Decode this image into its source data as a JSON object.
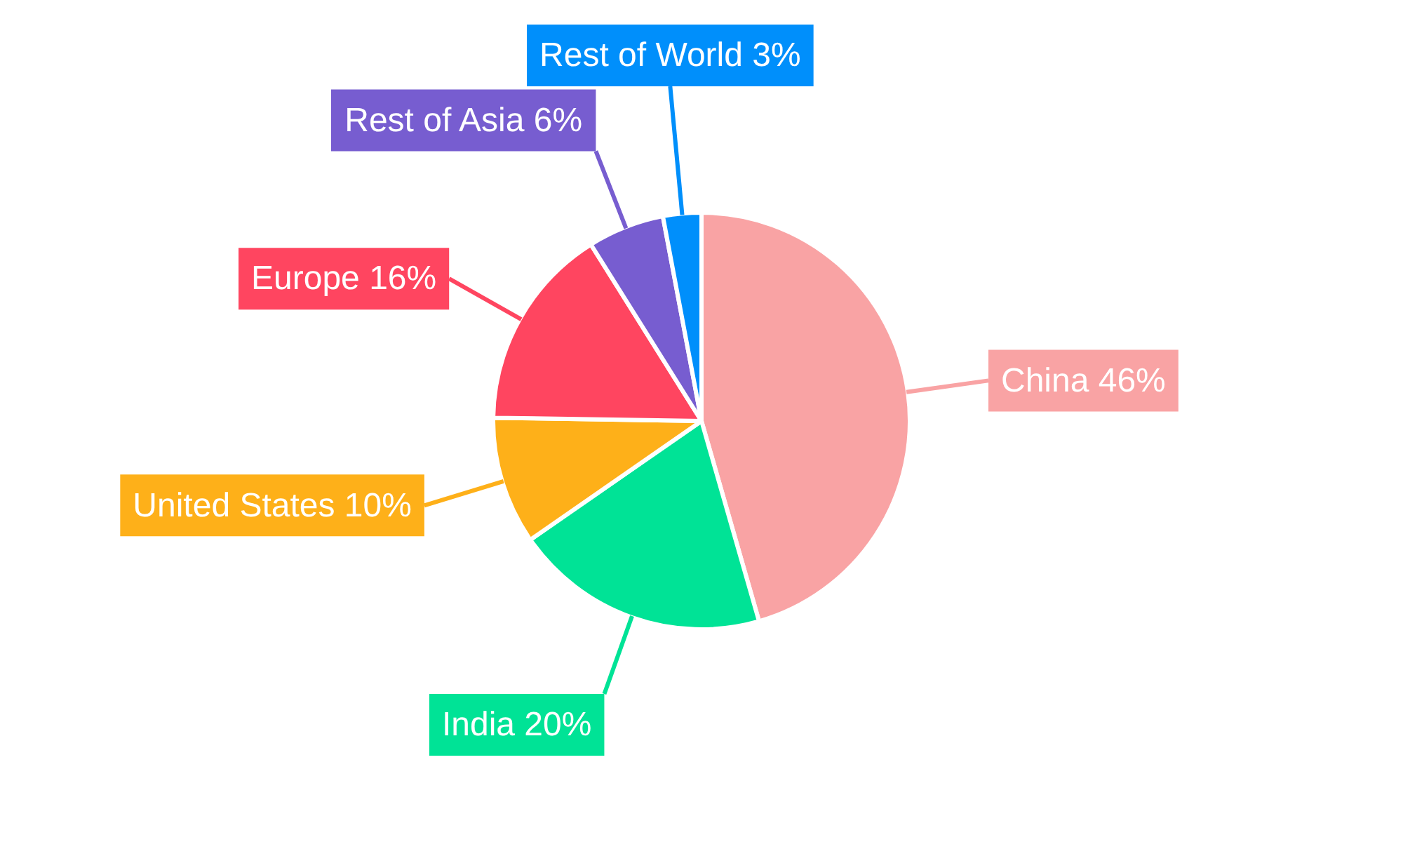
{
  "chart_data": {
    "type": "pie",
    "categories": [
      "China",
      "India",
      "United States",
      "Europe",
      "Rest of Asia",
      "Rest of World"
    ],
    "values": [
      46,
      20,
      10,
      16,
      6,
      3
    ],
    "colors": [
      "#f9a3a4",
      "#00e396",
      "#feb019",
      "#ff4560",
      "#775dd0",
      "#008ffb"
    ],
    "value_labels": [
      "46%",
      "20%",
      "10%",
      "16%",
      "6%",
      "3%"
    ],
    "legend": false
  }
}
